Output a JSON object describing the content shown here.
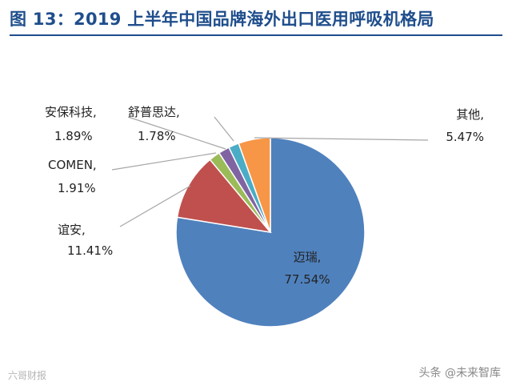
{
  "header": {
    "title": "图 13：2019 上半年中国品牌海外出口医用呼吸机格局"
  },
  "chart_data": {
    "type": "pie",
    "title": "图 13：2019 上半年中国品牌海外出口医用呼吸机格局",
    "slices": [
      {
        "name": "迈瑞,",
        "value_label": "77.54%",
        "value": 77.54,
        "color": "#4f81bd"
      },
      {
        "name": "谊安,",
        "value_label": "11.41%",
        "value": 11.41,
        "color": "#c0504d"
      },
      {
        "name": "COMEN,",
        "value_label": "1.91%",
        "value": 1.91,
        "color": "#9bbb59"
      },
      {
        "name": "安保科技,",
        "value_label": "1.89%",
        "value": 1.89,
        "color": "#8064a2"
      },
      {
        "name": "舒普思达,",
        "value_label": "1.78%",
        "value": 1.78,
        "color": "#4bacc6"
      },
      {
        "name": "其他,",
        "value_label": "5.47%",
        "value": 5.47,
        "color": "#f79646"
      }
    ],
    "start_angle_deg": 0,
    "direction": "clockwise"
  },
  "watermarks": {
    "left": "六哥财报",
    "right": "头条 @未来智库"
  }
}
